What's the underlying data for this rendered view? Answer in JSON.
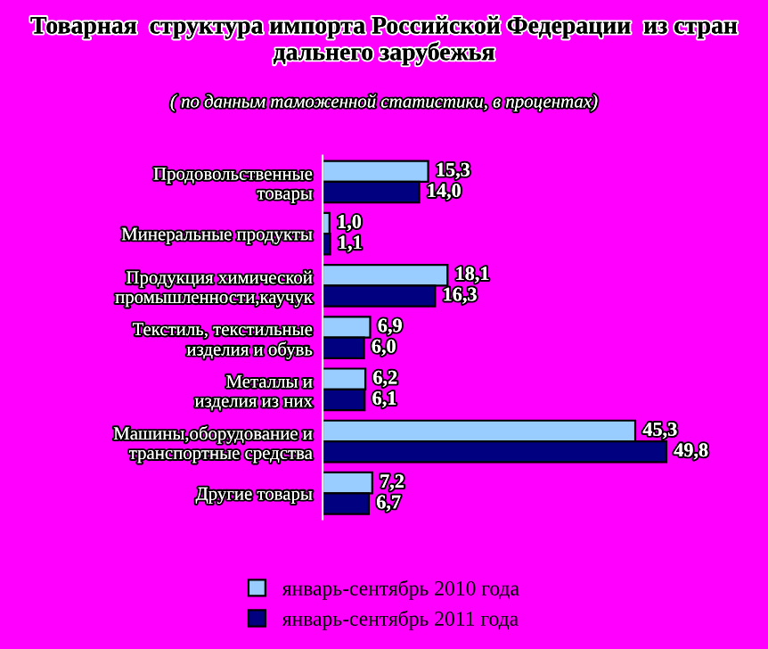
{
  "chart_data": {
    "type": "bar",
    "orientation": "horizontal",
    "title": "Товарная  структура импорта Российской Федерации  из стран дальнего зарубежья",
    "subtitle": "( по данным таможенной статистики, в процентах)",
    "categories": [
      "Продовольственные товары",
      "Минеральные продукты",
      "Продукция химической промышленности,каучук",
      "Текстиль, текстильные изделия и обувь",
      "Металлы и изделия из них",
      "Машины,оборудование и транспортные средства",
      "Другие товары"
    ],
    "series": [
      {
        "name": "январь-сентябрь 2010 года",
        "color": "#99ccff",
        "values": [
          15.3,
          1.0,
          18.1,
          6.9,
          6.2,
          45.3,
          7.2
        ],
        "value_labels": [
          "15,3",
          "1,0",
          "18,1",
          "6,9",
          "6,2",
          "45,3",
          "7,2"
        ]
      },
      {
        "name": "январь-сентябрь 2011 года",
        "color": "#000080",
        "values": [
          14.0,
          1.1,
          16.3,
          6.0,
          6.1,
          49.8,
          6.7
        ],
        "value_labels": [
          "14,0",
          "1,1",
          "16,3",
          "6,0",
          "6,1",
          "49,8",
          "6,7"
        ]
      }
    ],
    "legend": "bottom",
    "grid": false
  }
}
